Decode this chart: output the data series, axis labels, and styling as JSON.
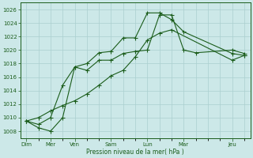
{
  "title": "",
  "xlabel": "Pression niveau de la mer( hPa )",
  "ylabel": "",
  "bg_color": "#cce8e8",
  "grid_color": "#aacfcf",
  "line_color": "#1a5c1a",
  "ylim": [
    1007,
    1027
  ],
  "yticks": [
    1008,
    1010,
    1012,
    1014,
    1016,
    1018,
    1020,
    1022,
    1024,
    1026
  ],
  "xlim": [
    -0.5,
    18.5
  ],
  "day_labels": [
    "Dim",
    "Mer",
    "Ven",
    "Sam",
    "Lun",
    "Mar",
    "Jeu"
  ],
  "day_positions": [
    0,
    2,
    4,
    7,
    10,
    13,
    17
  ],
  "line1_x": [
    0,
    1,
    2,
    3,
    4,
    5,
    6,
    7,
    8,
    9,
    10,
    11,
    12,
    13,
    14,
    17,
    18
  ],
  "line1_y": [
    1009.5,
    1008.5,
    1008.0,
    1010.0,
    1017.5,
    1017.0,
    1018.5,
    1018.5,
    1019.5,
    1019.8,
    1020.0,
    1025.2,
    1025.2,
    1020.0,
    1019.6,
    1020.0,
    1019.5
  ],
  "line2_x": [
    0,
    1,
    2,
    3,
    4,
    5,
    6,
    7,
    8,
    9,
    10,
    11,
    12,
    13,
    17,
    18
  ],
  "line2_y": [
    1009.5,
    1009.0,
    1010.0,
    1014.8,
    1017.5,
    1018.0,
    1019.6,
    1019.8,
    1021.8,
    1021.8,
    1025.5,
    1025.5,
    1024.5,
    1022.7,
    1019.5,
    1019.2
  ],
  "line3_x": [
    0,
    1,
    2,
    3,
    4,
    5,
    6,
    7,
    8,
    9,
    10,
    11,
    12,
    17,
    18
  ],
  "line3_y": [
    1009.5,
    1010.0,
    1011.0,
    1011.8,
    1012.5,
    1013.5,
    1014.8,
    1016.2,
    1017.0,
    1019.0,
    1021.5,
    1022.5,
    1023.0,
    1018.5,
    1019.2
  ]
}
